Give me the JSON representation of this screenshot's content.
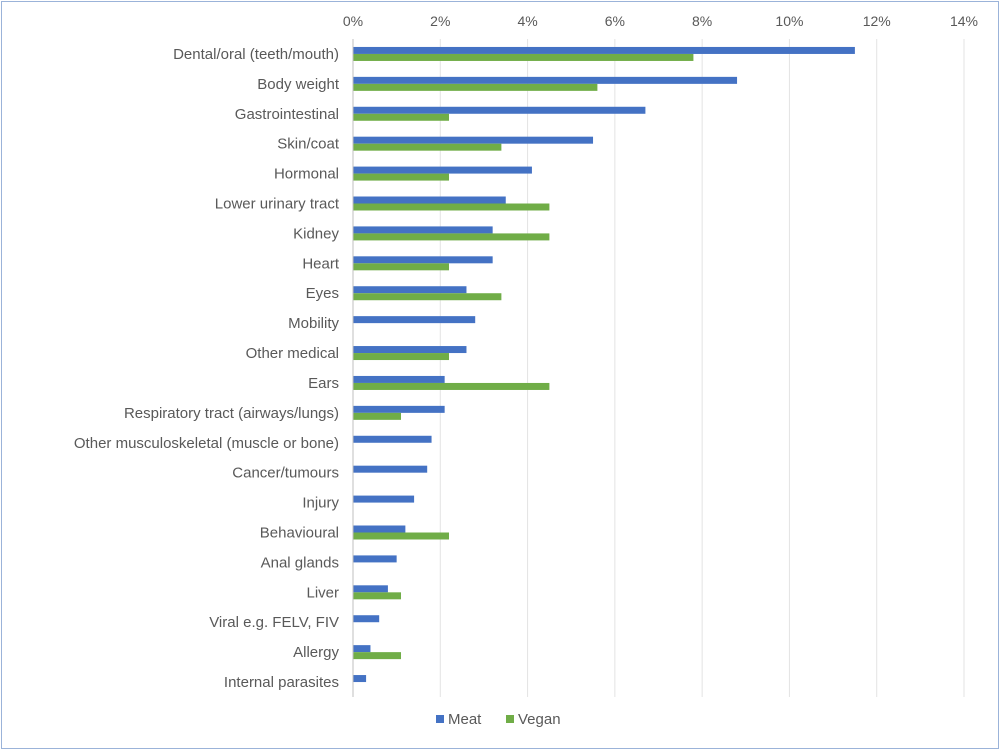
{
  "chart_data": {
    "type": "bar",
    "orientation": "horizontal",
    "title": "",
    "xlabel": "",
    "ylabel": "",
    "xlim": [
      0,
      14
    ],
    "x_ticks": [
      "0%",
      "2%",
      "4%",
      "6%",
      "8%",
      "10%",
      "12%",
      "14%"
    ],
    "x_axis_position": "top",
    "grid": true,
    "legend_position": "bottom",
    "categories": [
      "Dental/oral (teeth/mouth)",
      "Body weight",
      "Gastrointestinal",
      "Skin/coat",
      "Hormonal",
      "Lower urinary tract",
      "Kidney",
      "Heart",
      "Eyes",
      "Mobility",
      "Other medical",
      "Ears",
      "Respiratory tract (airways/lungs)",
      "Other musculoskeletal (muscle or bone)",
      "Cancer/tumours",
      "Injury",
      "Behavioural",
      "Anal glands",
      "Liver",
      "Viral e.g. FELV, FIV",
      "Allergy",
      "Internal parasites"
    ],
    "series": [
      {
        "name": "Meat",
        "color": "#4472c4",
        "values": [
          11.5,
          8.8,
          6.7,
          5.5,
          4.1,
          3.5,
          3.2,
          3.2,
          2.6,
          2.8,
          2.6,
          2.1,
          2.1,
          1.8,
          1.7,
          1.4,
          1.2,
          1.0,
          0.8,
          0.6,
          0.4,
          0.3
        ]
      },
      {
        "name": "Vegan",
        "color": "#70ad47",
        "values": [
          7.8,
          5.6,
          2.2,
          3.4,
          2.2,
          4.5,
          4.5,
          2.2,
          3.4,
          0,
          2.2,
          4.5,
          1.1,
          0,
          0,
          0,
          2.2,
          0,
          1.1,
          0,
          1.1,
          0
        ]
      }
    ]
  }
}
